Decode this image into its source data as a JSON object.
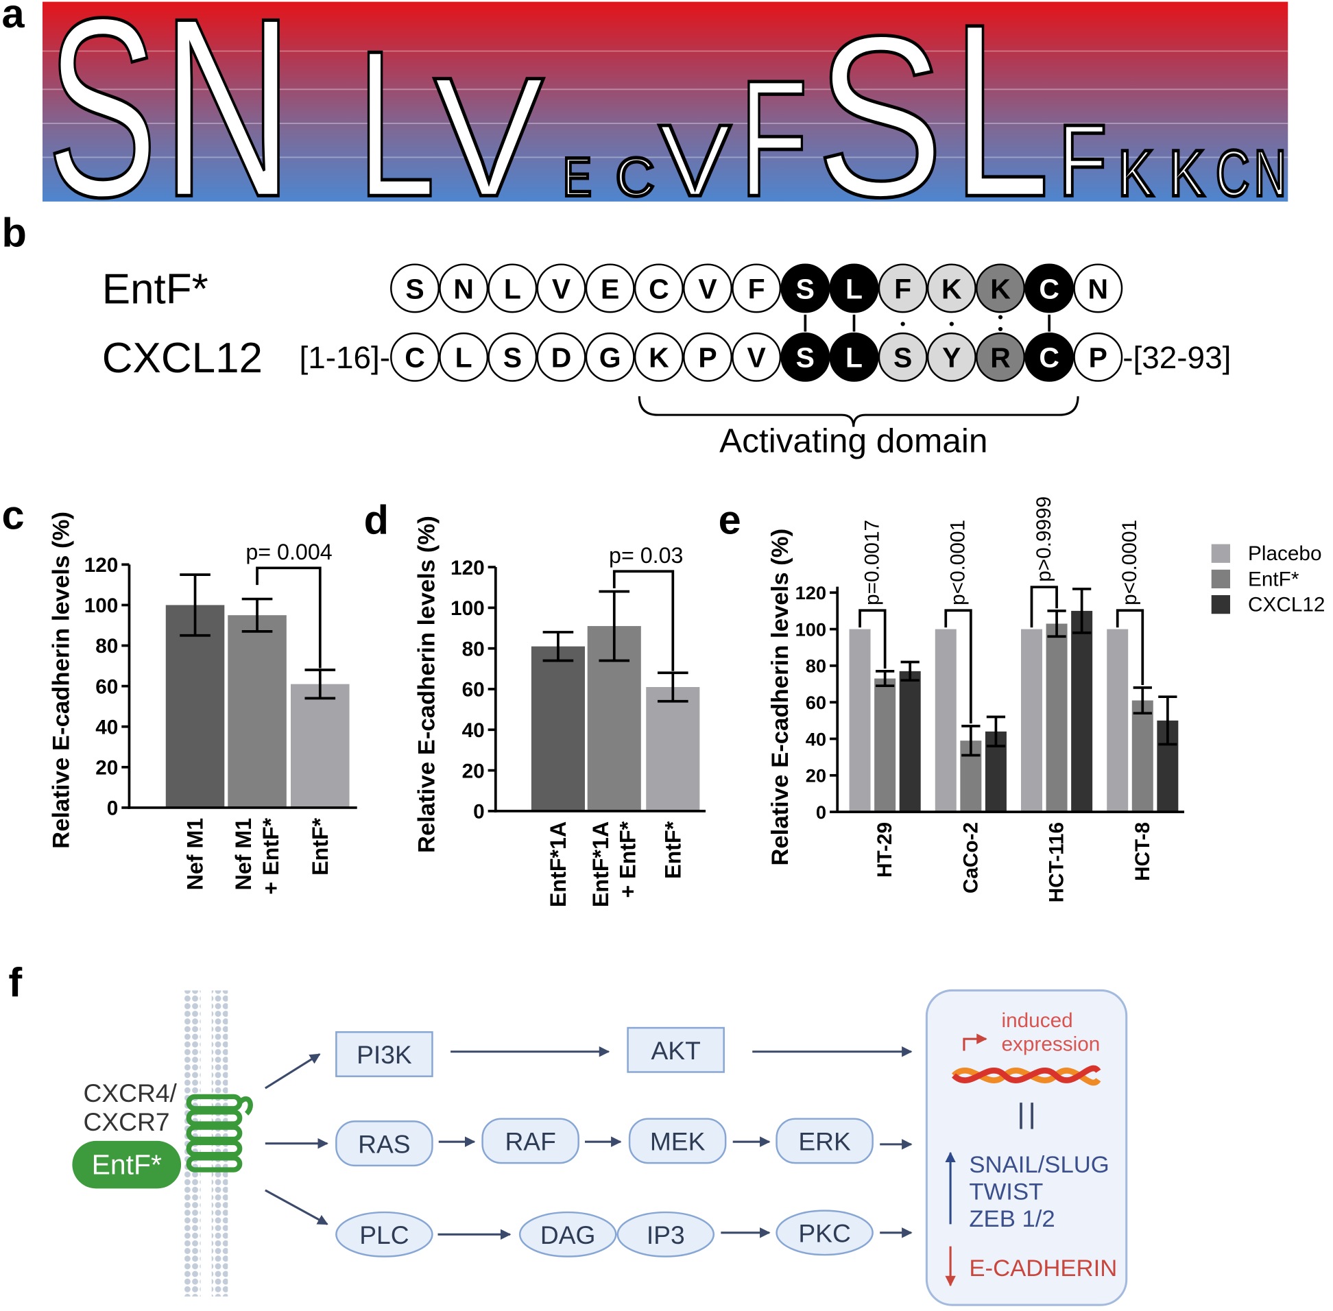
{
  "panel_labels": [
    "a",
    "b",
    "c",
    "d",
    "e",
    "f"
  ],
  "sequence_logo": {
    "letters": [
      "S",
      "N",
      "L",
      "V",
      "E",
      "C",
      "V",
      "F",
      "S",
      "L",
      "F",
      "K",
      "K",
      "C",
      "N"
    ]
  },
  "alignment": {
    "rows": [
      {
        "name": "EntF*",
        "residues": [
          "S",
          "N",
          "L",
          "V",
          "E",
          "C",
          "V",
          "F",
          "S",
          "L",
          "F",
          "K",
          "K",
          "C",
          "N"
        ],
        "colors": [
          "#ffffff",
          "#ffffff",
          "#ffffff",
          "#ffffff",
          "#ffffff",
          "#ffffff",
          "#ffffff",
          "#ffffff",
          "#000000",
          "#000000",
          "#d9d9d9",
          "#d9d9d9",
          "#808080",
          "#000000",
          "#ffffff"
        ]
      },
      {
        "name": "CXCL12",
        "prefix": "[1-16]-",
        "residues": [
          "C",
          "L",
          "S",
          "D",
          "G",
          "K",
          "P",
          "V",
          "S",
          "L",
          "S",
          "Y",
          "R",
          "C",
          "P"
        ],
        "suffix": "-[32-93]",
        "colors": [
          "#ffffff",
          "#ffffff",
          "#ffffff",
          "#ffffff",
          "#ffffff",
          "#ffffff",
          "#ffffff",
          "#ffffff",
          "#000000",
          "#000000",
          "#d9d9d9",
          "#d9d9d9",
          "#808080",
          "#000000",
          "#ffffff"
        ]
      }
    ],
    "domain_label": "Activating domain"
  },
  "chart_data": [
    {
      "type": "bar",
      "y_label": "Relative E-cadherin levels (%)",
      "categories": [
        [
          "Nef M1"
        ],
        [
          "Nef M1",
          "+ EntF*"
        ],
        [
          "EntF*"
        ]
      ],
      "values": [
        100,
        95,
        61
      ],
      "errors": [
        15,
        8,
        7
      ],
      "colors": [
        "#5e5e5e",
        "#818181",
        "#a4a4a9"
      ],
      "ylim": [
        0,
        120
      ],
      "yticks": [
        0,
        20,
        40,
        60,
        80,
        100,
        120
      ],
      "annotation": "p= 0.004"
    },
    {
      "type": "bar",
      "y_label": "Relative E-cadherin levels (%)",
      "categories": [
        [
          "EntF*1A"
        ],
        [
          "EntF*1A",
          "+ EntF*"
        ],
        [
          "EntF*"
        ]
      ],
      "values": [
        81,
        91,
        61
      ],
      "errors": [
        7,
        17,
        7
      ],
      "colors": [
        "#5e5e5e",
        "#818181",
        "#a4a4a9"
      ],
      "ylim": [
        0,
        120
      ],
      "yticks": [
        0,
        20,
        40,
        60,
        80,
        100,
        120
      ],
      "annotation": "p= 0.03"
    },
    {
      "type": "grouped_bar",
      "y_label": "Relative E-cadherin levels (%)",
      "categories": [
        "HT-29",
        "CaCo-2",
        "HCT-116",
        "HCT-8"
      ],
      "series": [
        {
          "name": "Placebo",
          "color": "#a6a6aa",
          "values": [
            100,
            100,
            100,
            100
          ]
        },
        {
          "name": "EntF*",
          "color": "#7f7f7f",
          "values": [
            73,
            39,
            103,
            61
          ],
          "errors": [
            4,
            8,
            7,
            7
          ]
        },
        {
          "name": "CXCL12",
          "color": "#333333",
          "values": [
            77,
            44,
            110,
            50
          ],
          "errors": [
            5,
            8,
            12,
            13
          ]
        }
      ],
      "ylim": [
        0,
        120
      ],
      "yticks": [
        0,
        20,
        40,
        60,
        80,
        100,
        120
      ],
      "annotations": [
        "p=0.0017",
        "p<0.0001",
        "p>0.9999",
        "p<0.0001"
      ]
    }
  ],
  "pathway": {
    "receptor": [
      "CXCR4/",
      "CXCR7"
    ],
    "ligand": "EntF*",
    "nodes": [
      "PI3K",
      "AKT",
      "RAS",
      "RAF",
      "MEK",
      "ERK",
      "PLC",
      "DAG",
      "IP3",
      "PKC"
    ],
    "induced": [
      "induced",
      "expression"
    ],
    "upregulated": [
      "SNAIL/SLUG",
      "TWIST",
      "ZEB 1/2"
    ],
    "downregulated": "E-CADHERIN"
  }
}
